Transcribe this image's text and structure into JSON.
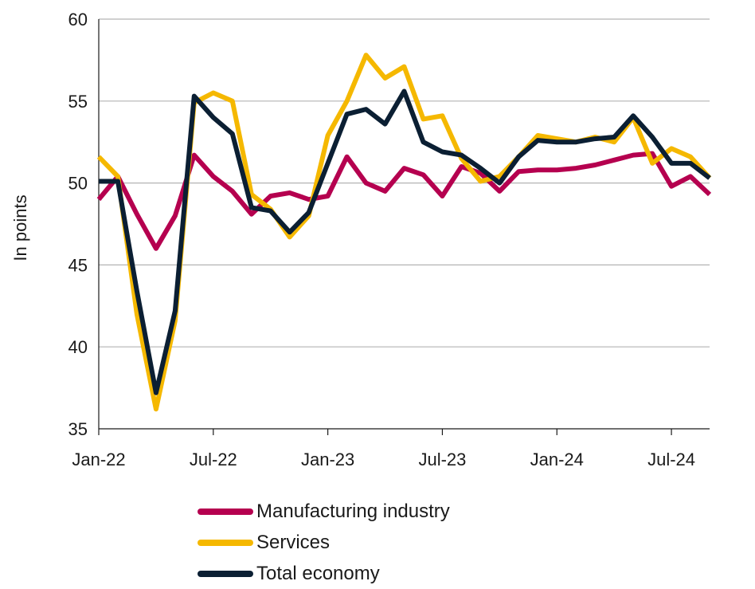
{
  "chart_data": {
    "type": "line",
    "ylabel": "In points",
    "ylim": [
      35,
      60
    ],
    "yticks": [
      35,
      40,
      45,
      50,
      55,
      60
    ],
    "x": [
      "2022-01",
      "2022-02",
      "2022-03",
      "2022-04",
      "2022-05",
      "2022-06",
      "2022-07",
      "2022-08",
      "2022-09",
      "2022-10",
      "2022-11",
      "2022-12",
      "2023-01",
      "2023-02",
      "2023-03",
      "2023-04",
      "2023-05",
      "2023-06",
      "2023-07",
      "2023-08",
      "2023-09",
      "2023-10",
      "2023-11",
      "2023-12",
      "2024-01",
      "2024-02",
      "2024-03",
      "2024-04",
      "2024-05",
      "2024-06",
      "2024-07",
      "2024-08",
      "2024-09"
    ],
    "xticks": [
      {
        "x": "2022-01",
        "label": "Jan-22"
      },
      {
        "x": "2022-07",
        "label": "Jul-22"
      },
      {
        "x": "2023-01",
        "label": "Jan-23"
      },
      {
        "x": "2023-07",
        "label": "Jul-23"
      },
      {
        "x": "2024-01",
        "label": "Jan-24"
      },
      {
        "x": "2024-07",
        "label": "Jul-24"
      }
    ],
    "grid": true,
    "legend_position": "bottom",
    "series": [
      {
        "name": "Manufacturing industry",
        "color": "#b5004f",
        "values": [
          49.0,
          50.4,
          48.1,
          46.0,
          48.0,
          51.7,
          50.4,
          49.5,
          48.1,
          49.2,
          49.4,
          49.0,
          49.2,
          51.6,
          50.0,
          49.5,
          50.9,
          50.5,
          49.2,
          51.0,
          50.6,
          49.5,
          50.7,
          50.8,
          50.8,
          50.9,
          51.1,
          51.4,
          51.7,
          51.8,
          49.8,
          50.4,
          49.3
        ]
      },
      {
        "name": "Services",
        "color": "#f5b800",
        "values": [
          51.6,
          50.4,
          42.0,
          36.2,
          41.6,
          54.9,
          55.5,
          55.0,
          49.3,
          48.4,
          46.7,
          48.0,
          52.9,
          55.0,
          57.8,
          56.4,
          57.1,
          53.9,
          54.1,
          51.5,
          50.1,
          50.4,
          51.6,
          52.9,
          52.7,
          52.5,
          52.8,
          52.5,
          54.0,
          51.2,
          52.1,
          51.6,
          50.3
        ]
      },
      {
        "name": "Total economy",
        "color": "#0b1f33",
        "values": [
          50.1,
          50.1,
          43.4,
          37.2,
          42.2,
          55.3,
          54.0,
          53.0,
          48.5,
          48.3,
          47.0,
          48.2,
          51.2,
          54.2,
          54.5,
          53.6,
          55.6,
          52.5,
          51.9,
          51.7,
          50.9,
          50.0,
          51.6,
          52.6,
          52.5,
          52.5,
          52.7,
          52.8,
          54.1,
          52.8,
          51.2,
          51.2,
          50.3
        ]
      }
    ]
  }
}
